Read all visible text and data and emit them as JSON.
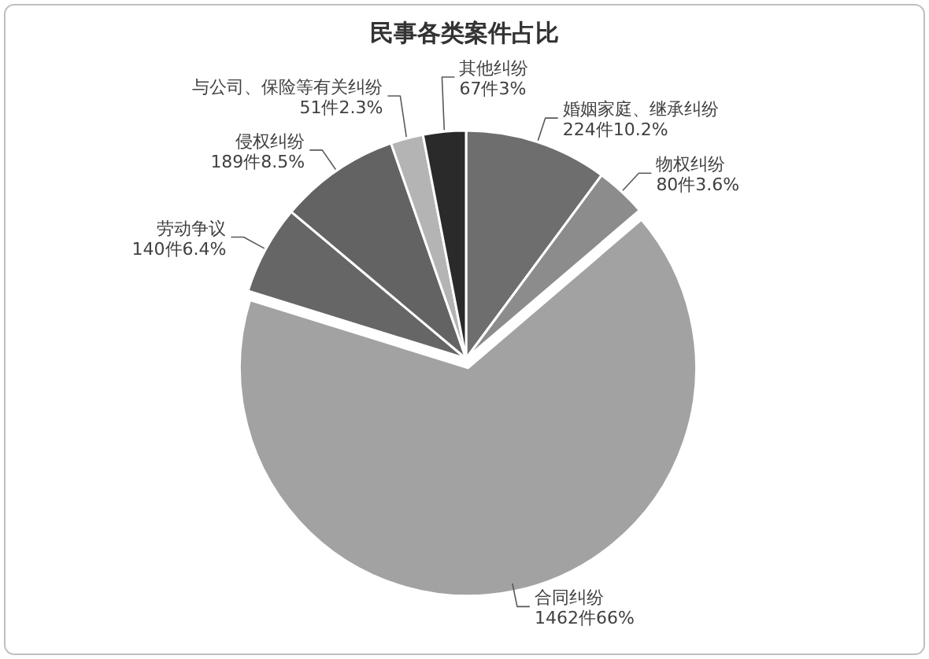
{
  "chart_data": {
    "type": "pie",
    "title": "民事各类案件占比",
    "categories": [
      "婚姻家庭、继承纠纷",
      "物权纠纷",
      "合同纠纷",
      "劳动争议",
      "侵权纠纷",
      "与公司、保险等有关纠纷",
      "其他纠纷"
    ],
    "values": [
      224,
      80,
      1462,
      140,
      189,
      51,
      67
    ],
    "value_labels": [
      "224件10.2%",
      "80件3.6%",
      "1462件66%",
      "140件6.4%",
      "189件8.5%",
      "51件2.3%",
      "67件3%"
    ],
    "colors": [
      "#6e6e6e",
      "#8c8c8c",
      "#a2a2a2",
      "#666666",
      "#636363",
      "#b4b4b4",
      "#2a2a2a"
    ]
  }
}
